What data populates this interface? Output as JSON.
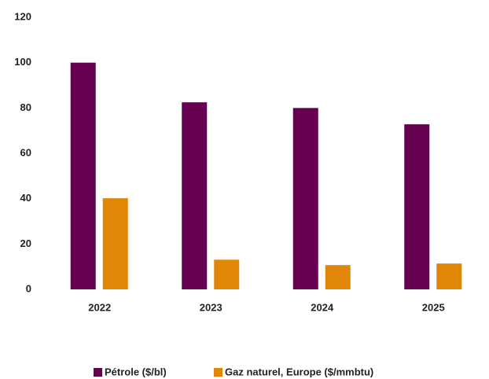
{
  "chart_data": {
    "type": "bar",
    "categories": [
      "2022",
      "2023",
      "2024",
      "2025"
    ],
    "series": [
      {
        "name": "Pétrole ($/bl)",
        "color": "#660050",
        "values": [
          100,
          82.5,
          80,
          72.8
        ]
      },
      {
        "name": "Gaz naturel, Europe ($/mmbtu)",
        "color": "#e0870a",
        "values": [
          40.2,
          13.1,
          10.7,
          11.4
        ]
      }
    ],
    "ylim": [
      0,
      120
    ],
    "yticks": [
      0,
      20,
      40,
      60,
      80,
      100,
      120
    ],
    "grid": false,
    "legend": "bottom"
  }
}
